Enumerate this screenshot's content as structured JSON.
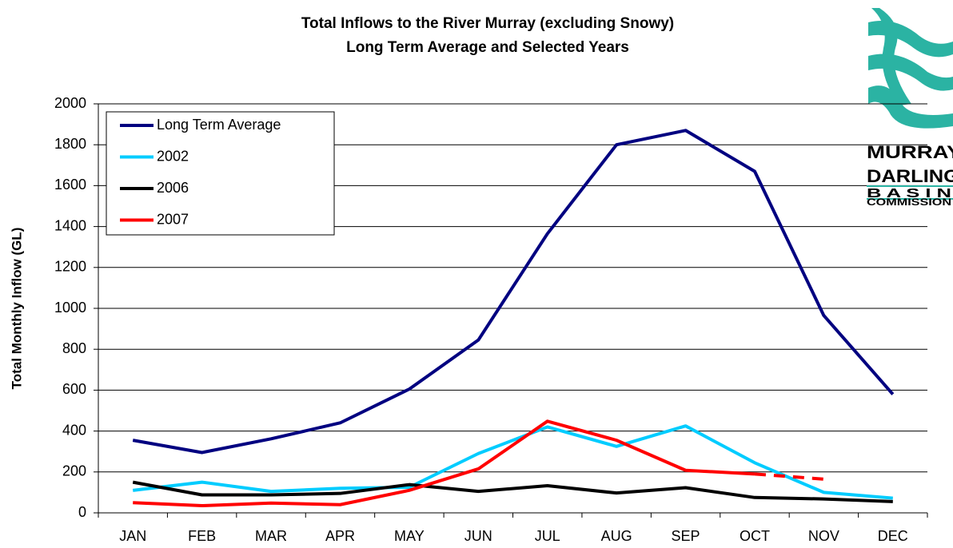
{
  "chart_data": {
    "type": "line",
    "title": "Total Inflows to the River Murray (excluding Snowy)",
    "subtitle": "Long Term Average and Selected Years",
    "ylabel": "Total Monthly Inflow (GL)",
    "categories": [
      "JAN",
      "FEB",
      "MAR",
      "APR",
      "MAY",
      "JUN",
      "JUL",
      "AUG",
      "SEP",
      "OCT",
      "NOV",
      "DEC"
    ],
    "series": [
      {
        "name": "Long Term Average",
        "color": "#000080",
        "values": [
          355,
          295,
          362,
          440,
          605,
          845,
          1365,
          1800,
          1870,
          1670,
          965,
          580
        ]
      },
      {
        "name": "2002",
        "color": "#00ccff",
        "values": [
          110,
          150,
          105,
          120,
          125,
          290,
          420,
          325,
          425,
          245,
          100,
          72
        ]
      },
      {
        "name": "2006",
        "color": "#000000",
        "values": [
          150,
          88,
          88,
          95,
          138,
          105,
          133,
          97,
          123,
          75,
          68,
          55
        ]
      },
      {
        "name": "2007",
        "color": "#ff0000",
        "values": [
          50,
          35,
          48,
          40,
          110,
          215,
          448,
          355,
          208,
          190,
          165,
          null
        ],
        "dash_from": "OCT"
      }
    ],
    "ylim": [
      0,
      2000
    ],
    "yticks": [
      0,
      200,
      400,
      600,
      800,
      1000,
      1200,
      1400,
      1600,
      1800,
      2000
    ],
    "grid": true,
    "legend": "upper left",
    "logo": [
      "MURRAY-",
      "DARLING",
      "B A S I N",
      "COMMISSION"
    ]
  }
}
